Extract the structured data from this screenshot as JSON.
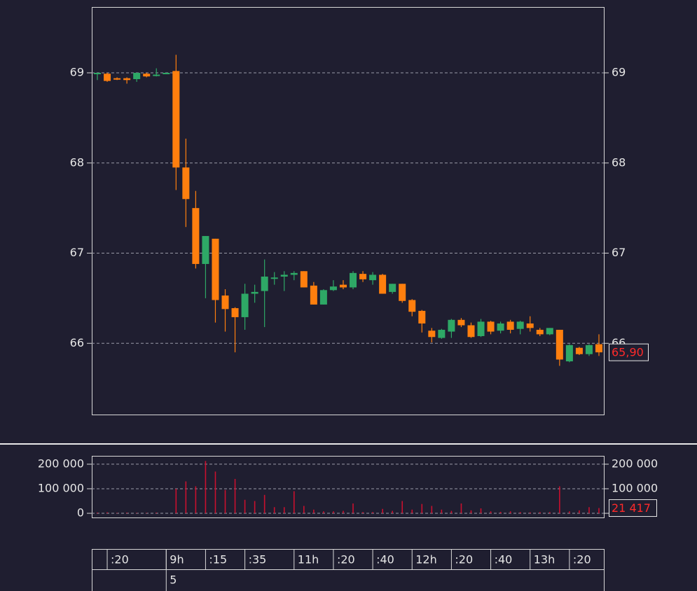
{
  "chart_data": {
    "type": "candlestick",
    "categories": [
      null,
      ":20",
      null,
      null,
      null,
      null,
      null,
      "9h",
      null,
      null,
      null,
      ":15",
      null,
      null,
      null,
      ":35",
      null,
      null,
      null,
      null,
      "11h",
      null,
      null,
      null,
      ":20",
      null,
      null,
      null,
      ":40",
      null,
      null,
      null,
      "12h",
      null,
      null,
      null,
      ":20",
      null,
      null,
      null,
      ":40",
      null,
      null,
      null,
      "13h",
      null,
      null,
      null,
      ":20",
      null,
      null,
      null
    ],
    "open": [
      68.99,
      68.99,
      68.94,
      68.94,
      68.93,
      68.99,
      68.97,
      69.0,
      69.02,
      67.95,
      67.5,
      66.88,
      67.16,
      66.53,
      66.39,
      66.29,
      66.55,
      66.58,
      66.72,
      66.74,
      66.76,
      66.8,
      66.64,
      66.43,
      66.59,
      66.65,
      66.62,
      66.77,
      66.7,
      66.76,
      66.57,
      66.66,
      66.48,
      66.36,
      66.14,
      66.06,
      66.13,
      66.26,
      66.2,
      66.08,
      66.24,
      66.14,
      66.24,
      66.16,
      66.22,
      66.15,
      66.1,
      66.15,
      65.8,
      65.95,
      65.88,
      65.99
    ],
    "high": [
      69.0,
      69.0,
      68.95,
      68.95,
      69.0,
      69.0,
      69.05,
      69.0,
      69.2,
      68.27,
      67.69,
      67.19,
      67.16,
      66.6,
      66.4,
      66.66,
      66.65,
      66.93,
      66.79,
      66.8,
      66.8,
      66.8,
      66.68,
      66.6,
      66.7,
      66.7,
      66.8,
      66.8,
      66.79,
      66.77,
      66.66,
      66.66,
      66.49,
      66.37,
      66.17,
      66.16,
      66.27,
      66.28,
      66.23,
      66.27,
      66.25,
      66.24,
      66.26,
      66.25,
      66.3,
      66.17,
      66.17,
      66.15,
      65.99,
      65.96,
      65.99,
      66.1
    ],
    "low": [
      68.92,
      68.9,
      68.92,
      68.88,
      68.9,
      68.95,
      68.96,
      69.0,
      67.7,
      67.29,
      66.83,
      66.5,
      66.23,
      66.13,
      65.9,
      66.15,
      66.45,
      66.18,
      66.65,
      66.58,
      66.7,
      66.62,
      66.43,
      66.43,
      66.58,
      66.6,
      66.6,
      66.68,
      66.65,
      66.55,
      66.55,
      66.45,
      66.3,
      66.12,
      66.01,
      66.05,
      66.06,
      66.18,
      66.06,
      66.07,
      66.1,
      66.11,
      66.11,
      66.1,
      66.13,
      66.08,
      66.09,
      65.75,
      65.79,
      65.87,
      65.86,
      65.86
    ],
    "close": [
      69.0,
      68.91,
      68.93,
      68.92,
      69.0,
      68.96,
      68.98,
      69.0,
      67.95,
      67.6,
      66.88,
      67.19,
      66.48,
      66.38,
      66.29,
      66.55,
      66.57,
      66.74,
      66.73,
      66.76,
      66.78,
      66.62,
      66.43,
      66.59,
      66.63,
      66.62,
      66.78,
      66.71,
      66.76,
      66.55,
      66.66,
      66.47,
      66.35,
      66.22,
      66.07,
      66.15,
      66.26,
      66.2,
      66.07,
      66.24,
      66.13,
      66.22,
      66.15,
      66.24,
      66.17,
      66.1,
      66.17,
      65.82,
      65.98,
      65.88,
      65.98,
      65.9
    ],
    "up_color": "#2ea866",
    "down_color": "#ff7f0e",
    "ylim": [
      65.21,
      69.73
    ],
    "yticks": [
      66,
      67,
      68,
      69
    ],
    "grid": true,
    "last_price": {
      "value": 65.9,
      "label": "65,90"
    },
    "volume": {
      "values": [
        3000,
        4000,
        2000,
        3000,
        2000,
        2000,
        3000,
        0,
        100000,
        130000,
        110000,
        213000,
        170000,
        95000,
        140000,
        55000,
        50000,
        75000,
        25000,
        25000,
        90000,
        30000,
        15000,
        8000,
        8000,
        10000,
        40000,
        5000,
        5000,
        18000,
        10000,
        50000,
        15000,
        38000,
        30000,
        15000,
        10000,
        40000,
        12000,
        20000,
        8000,
        6000,
        8000,
        5000,
        4000,
        5000,
        5000,
        110000,
        8000,
        12000,
        25000,
        21417
      ],
      "color": "#c8102e",
      "ylim": [
        -17000,
        234000
      ],
      "yticks": [
        0,
        {
          "value": 100000,
          "label": "100 000"
        },
        {
          "value": 200000,
          "label": "200 000"
        }
      ],
      "last": {
        "value": 21417,
        "label": "21 417"
      }
    },
    "date_label": "5"
  }
}
